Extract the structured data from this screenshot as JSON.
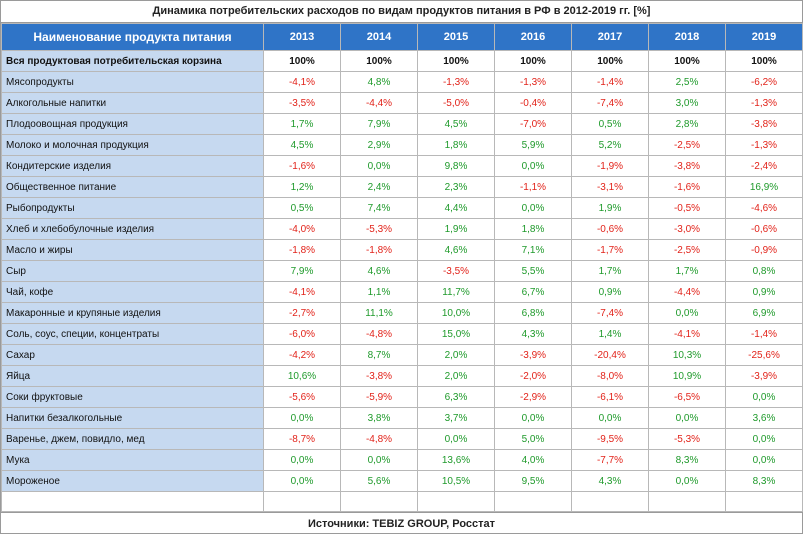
{
  "title": "Динамика потребительских расходов по видам продуктов питания в РФ в 2012-2019 гг. [%]",
  "header": {
    "name_label": "Наименование продукта питания",
    "years": [
      "2013",
      "2014",
      "2015",
      "2016",
      "2017",
      "2018",
      "2019"
    ]
  },
  "rows": [
    {
      "name": "Вся продуктовая потребительская корзина",
      "values": [
        "100%",
        "100%",
        "100%",
        "100%",
        "100%",
        "100%",
        "100%"
      ],
      "basket": true
    },
    {
      "name": "Мясопродукты",
      "values": [
        "-4,1%",
        "4,8%",
        "-1,3%",
        "-1,3%",
        "-1,4%",
        "2,5%",
        "-6,2%"
      ]
    },
    {
      "name": "Алкогольные напитки",
      "values": [
        "-3,5%",
        "-4,4%",
        "-5,0%",
        "-0,4%",
        "-7,4%",
        "3,0%",
        "-1,3%"
      ]
    },
    {
      "name": "Плодоовощная продукция",
      "values": [
        "1,7%",
        "7,9%",
        "4,5%",
        "-7,0%",
        "0,5%",
        "2,8%",
        "-3,8%"
      ]
    },
    {
      "name": "Молоко и молочная продукция",
      "values": [
        "4,5%",
        "2,9%",
        "1,8%",
        "5,9%",
        "5,2%",
        "-2,5%",
        "-1,3%"
      ]
    },
    {
      "name": "Кондитерские изделия",
      "values": [
        "-1,6%",
        "0,0%",
        "9,8%",
        "0,0%",
        "-1,9%",
        "-3,8%",
        "-2,4%"
      ]
    },
    {
      "name": "Общественное питание",
      "values": [
        "1,2%",
        "2,4%",
        "2,3%",
        "-1,1%",
        "-3,1%",
        "-1,6%",
        "16,9%"
      ]
    },
    {
      "name": "Рыбопродукты",
      "values": [
        "0,5%",
        "7,4%",
        "4,4%",
        "0,0%",
        "1,9%",
        "-0,5%",
        "-4,6%"
      ]
    },
    {
      "name": "Хлеб и хлебобулочные изделия",
      "values": [
        "-4,0%",
        "-5,3%",
        "1,9%",
        "1,8%",
        "-0,6%",
        "-3,0%",
        "-0,6%"
      ]
    },
    {
      "name": "Масло и жиры",
      "values": [
        "-1,8%",
        "-1,8%",
        "4,6%",
        "7,1%",
        "-1,7%",
        "-2,5%",
        "-0,9%"
      ]
    },
    {
      "name": "Сыр",
      "values": [
        "7,9%",
        "4,6%",
        "-3,5%",
        "5,5%",
        "1,7%",
        "1,7%",
        "0,8%"
      ]
    },
    {
      "name": "Чай, кофе",
      "values": [
        "-4,1%",
        "1,1%",
        "11,7%",
        "6,7%",
        "0,9%",
        "-4,4%",
        "0,9%"
      ]
    },
    {
      "name": "Макаронные и крупяные изделия",
      "values": [
        "-2,7%",
        "11,1%",
        "10,0%",
        "6,8%",
        "-7,4%",
        "0,0%",
        "6,9%"
      ]
    },
    {
      "name": "Соль, соус, специи, концентраты",
      "values": [
        "-6,0%",
        "-4,8%",
        "15,0%",
        "4,3%",
        "1,4%",
        "-4,1%",
        "-1,4%"
      ]
    },
    {
      "name": "Сахар",
      "values": [
        "-4,2%",
        "8,7%",
        "2,0%",
        "-3,9%",
        "-20,4%",
        "10,3%",
        "-25,6%"
      ]
    },
    {
      "name": "Яйца",
      "values": [
        "10,6%",
        "-3,8%",
        "2,0%",
        "-2,0%",
        "-8,0%",
        "10,9%",
        "-3,9%"
      ]
    },
    {
      "name": "Соки фруктовые",
      "values": [
        "-5,6%",
        "-5,9%",
        "6,3%",
        "-2,9%",
        "-6,1%",
        "-6,5%",
        "0,0%"
      ]
    },
    {
      "name": "Напитки безалкогольные",
      "values": [
        "0,0%",
        "3,8%",
        "3,7%",
        "0,0%",
        "0,0%",
        "0,0%",
        "3,6%"
      ]
    },
    {
      "name": "Варенье, джем, повидло, мед",
      "values": [
        "-8,7%",
        "-4,8%",
        "0,0%",
        "5,0%",
        "-9,5%",
        "-5,3%",
        "0,0%"
      ]
    },
    {
      "name": "Мука",
      "values": [
        "0,0%",
        "0,0%",
        "13,6%",
        "4,0%",
        "-7,7%",
        "8,3%",
        "0,0%"
      ]
    },
    {
      "name": "Мороженое",
      "values": [
        "0,0%",
        "5,6%",
        "10,5%",
        "9,5%",
        "4,3%",
        "0,0%",
        "8,3%"
      ]
    }
  ],
  "source": "Источники: TEBIZ GROUP, Росстат",
  "colors": {
    "header_bg": "#2f74c7",
    "name_bg": "#c6d9f0",
    "positive": "#1f9a2b",
    "negative": "#e2231a"
  }
}
